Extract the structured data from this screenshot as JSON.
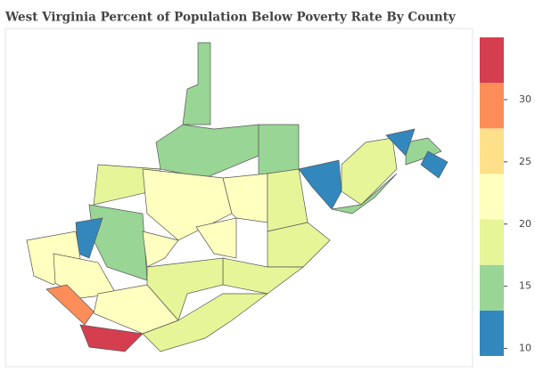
{
  "chart_data": {
    "type": "choropleth",
    "title": "West Virginia Percent of Population Below Poverty Rate By County",
    "values": [
      16,
      16,
      16,
      12,
      18,
      16,
      12,
      12,
      16,
      19,
      16,
      12,
      21,
      24,
      29,
      33,
      21,
      21,
      21,
      24,
      24,
      19,
      19,
      19,
      19,
      19
    ],
    "colorscale": [
      "#3288bd",
      "#99d594",
      "#e6f598",
      "#ffffbf",
      "#fee08b",
      "#fc8d59",
      "#d53e4f"
    ],
    "zlim": [
      9.4,
      35
    ],
    "zticks": [
      10,
      15,
      20,
      25,
      30
    ]
  }
}
